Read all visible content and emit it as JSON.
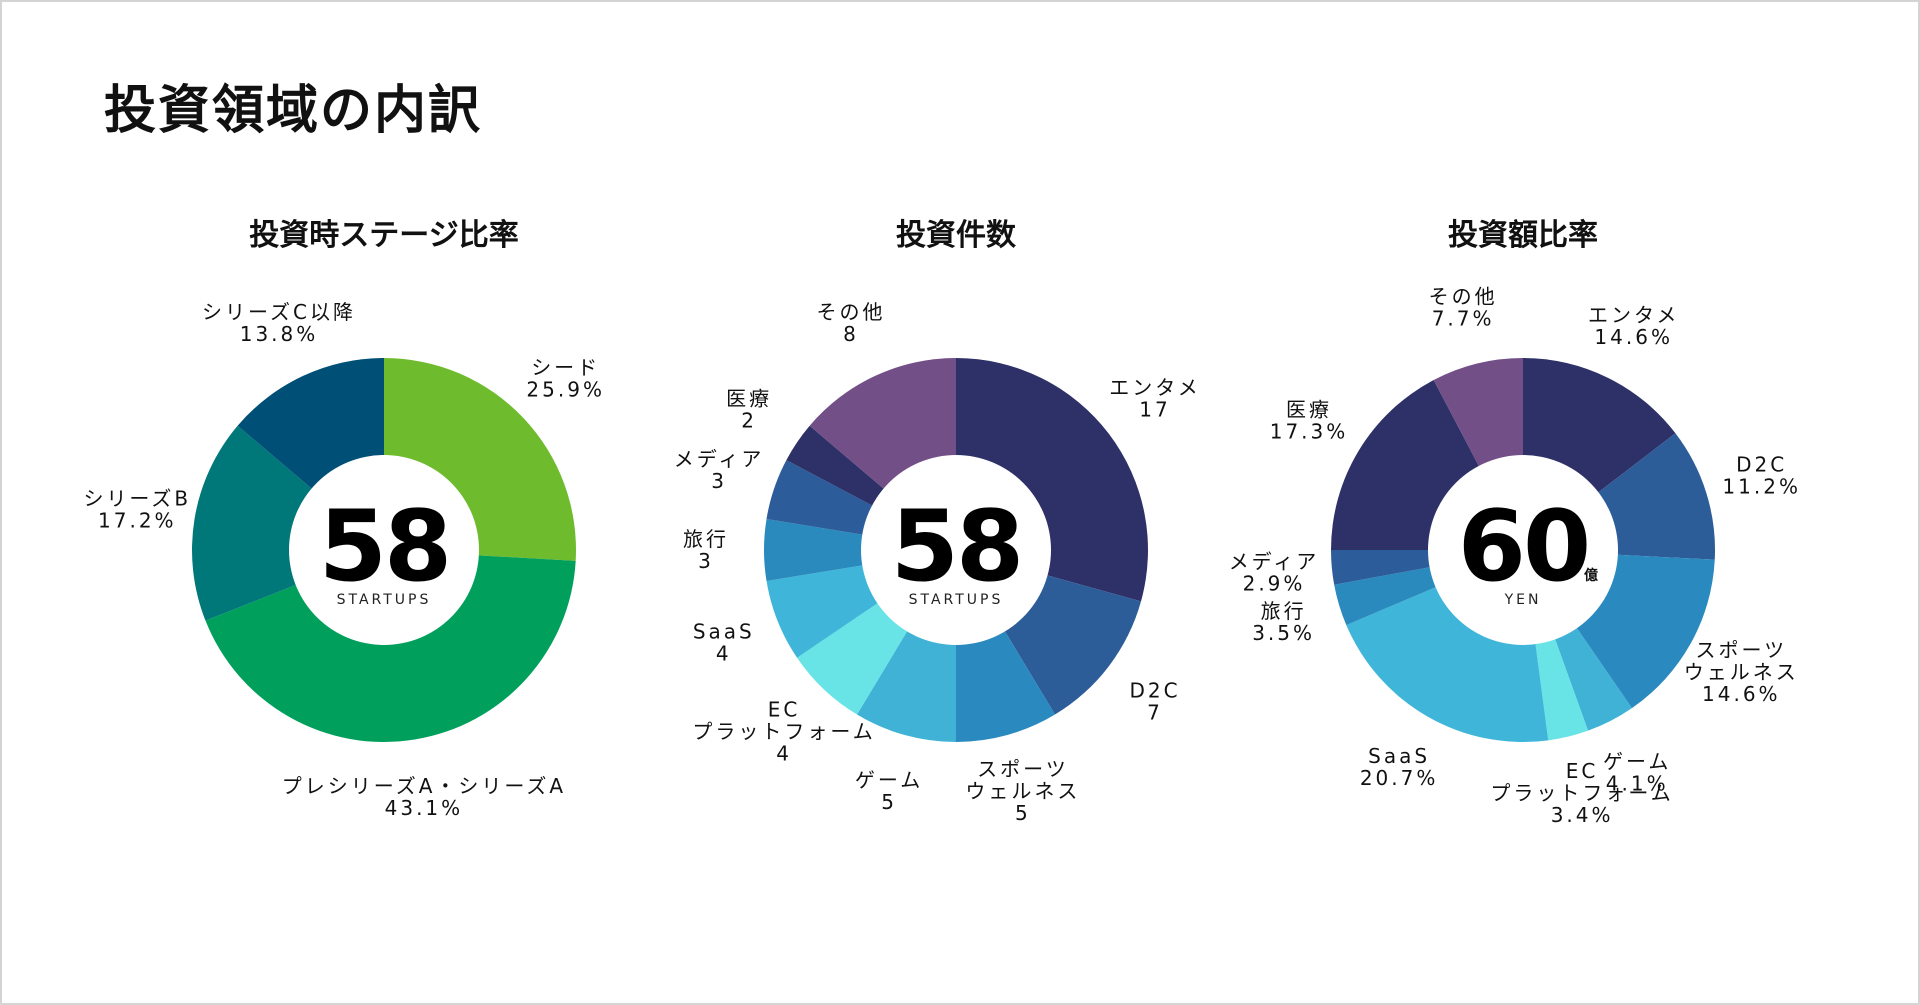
{
  "page": {
    "title": "投資領域の内訳"
  },
  "chart_data": [
    {
      "type": "pie",
      "title": "投資時ステージ比率",
      "center": {
        "value": "58",
        "unit": "STARTUPS",
        "suffix": ""
      },
      "slices": [
        {
          "label": [
            "シード",
            "25.9%"
          ],
          "value": 25.9,
          "color": "#6fbb2e"
        },
        {
          "label": [
            "プレシリーズA・シリーズA",
            "43.1%"
          ],
          "value": 43.1,
          "color": "#00a05c"
        },
        {
          "label": [
            "シリーズB",
            "17.2%"
          ],
          "value": 17.2,
          "color": "#00787a"
        },
        {
          "label": [
            "シリーズC以降",
            "13.8%"
          ],
          "value": 13.8,
          "color": "#004f76"
        }
      ]
    },
    {
      "type": "pie",
      "title": "投資件数",
      "center": {
        "value": "58",
        "unit": "STARTUPS",
        "suffix": ""
      },
      "slices": [
        {
          "label": [
            "エンタメ",
            "17"
          ],
          "value": 17,
          "color": "#2e3168"
        },
        {
          "label": [
            "D2C",
            "7"
          ],
          "value": 7,
          "color": "#2d5d99"
        },
        {
          "label": [
            "スポーツ",
            "ウェルネス",
            "5"
          ],
          "value": 5,
          "color": "#2a8ac0"
        },
        {
          "label": [
            "ゲーム",
            "5"
          ],
          "value": 5,
          "color": "#3fb2d6"
        },
        {
          "label": [
            "EC",
            "プラットフォーム",
            "4"
          ],
          "value": 4,
          "color": "#68e3e6"
        },
        {
          "label": [
            "SaaS",
            "4"
          ],
          "value": 4,
          "color": "#3fb6d9"
        },
        {
          "label": [
            "旅行",
            "3"
          ],
          "value": 3,
          "color": "#2a8abd"
        },
        {
          "label": [
            "メディア",
            "3"
          ],
          "value": 3,
          "color": "#2c5d9a"
        },
        {
          "label": [
            "医療",
            "2"
          ],
          "value": 2,
          "color": "#2e3168"
        },
        {
          "label": [
            "その他",
            "8"
          ],
          "value": 8,
          "color": "#724f87"
        }
      ]
    },
    {
      "type": "pie",
      "title": "投資額比率",
      "center": {
        "value": "60",
        "unit": "YEN",
        "suffix": "億"
      },
      "slices": [
        {
          "label": [
            "エンタメ",
            "14.6%"
          ],
          "value": 14.6,
          "color": "#2e3168"
        },
        {
          "label": [
            "D2C",
            "11.2%"
          ],
          "value": 11.2,
          "color": "#2d5d99"
        },
        {
          "label": [
            "スポーツ",
            "ウェルネス",
            "14.6%"
          ],
          "value": 14.6,
          "color": "#2a8ac0"
        },
        {
          "label": [
            "ゲーム",
            "4.1%"
          ],
          "value": 4.1,
          "color": "#3fb2d6"
        },
        {
          "label": [
            "EC",
            "プラットフォーム",
            "3.4%"
          ],
          "value": 3.4,
          "color": "#68e3e6"
        },
        {
          "label": [
            "SaaS",
            "20.7%"
          ],
          "value": 20.7,
          "color": "#3fb6d9"
        },
        {
          "label": [
            "旅行",
            "3.5%"
          ],
          "value": 3.5,
          "color": "#2a8abd"
        },
        {
          "label": [
            "メディア",
            "2.9%"
          ],
          "value": 2.9,
          "color": "#2c5d9a"
        },
        {
          "label": [
            "医療",
            "17.3%"
          ],
          "value": 17.3,
          "color": "#2e3168"
        },
        {
          "label": [
            "その他",
            "7.7%"
          ],
          "value": 7.7,
          "color": "#724f87"
        }
      ]
    }
  ]
}
